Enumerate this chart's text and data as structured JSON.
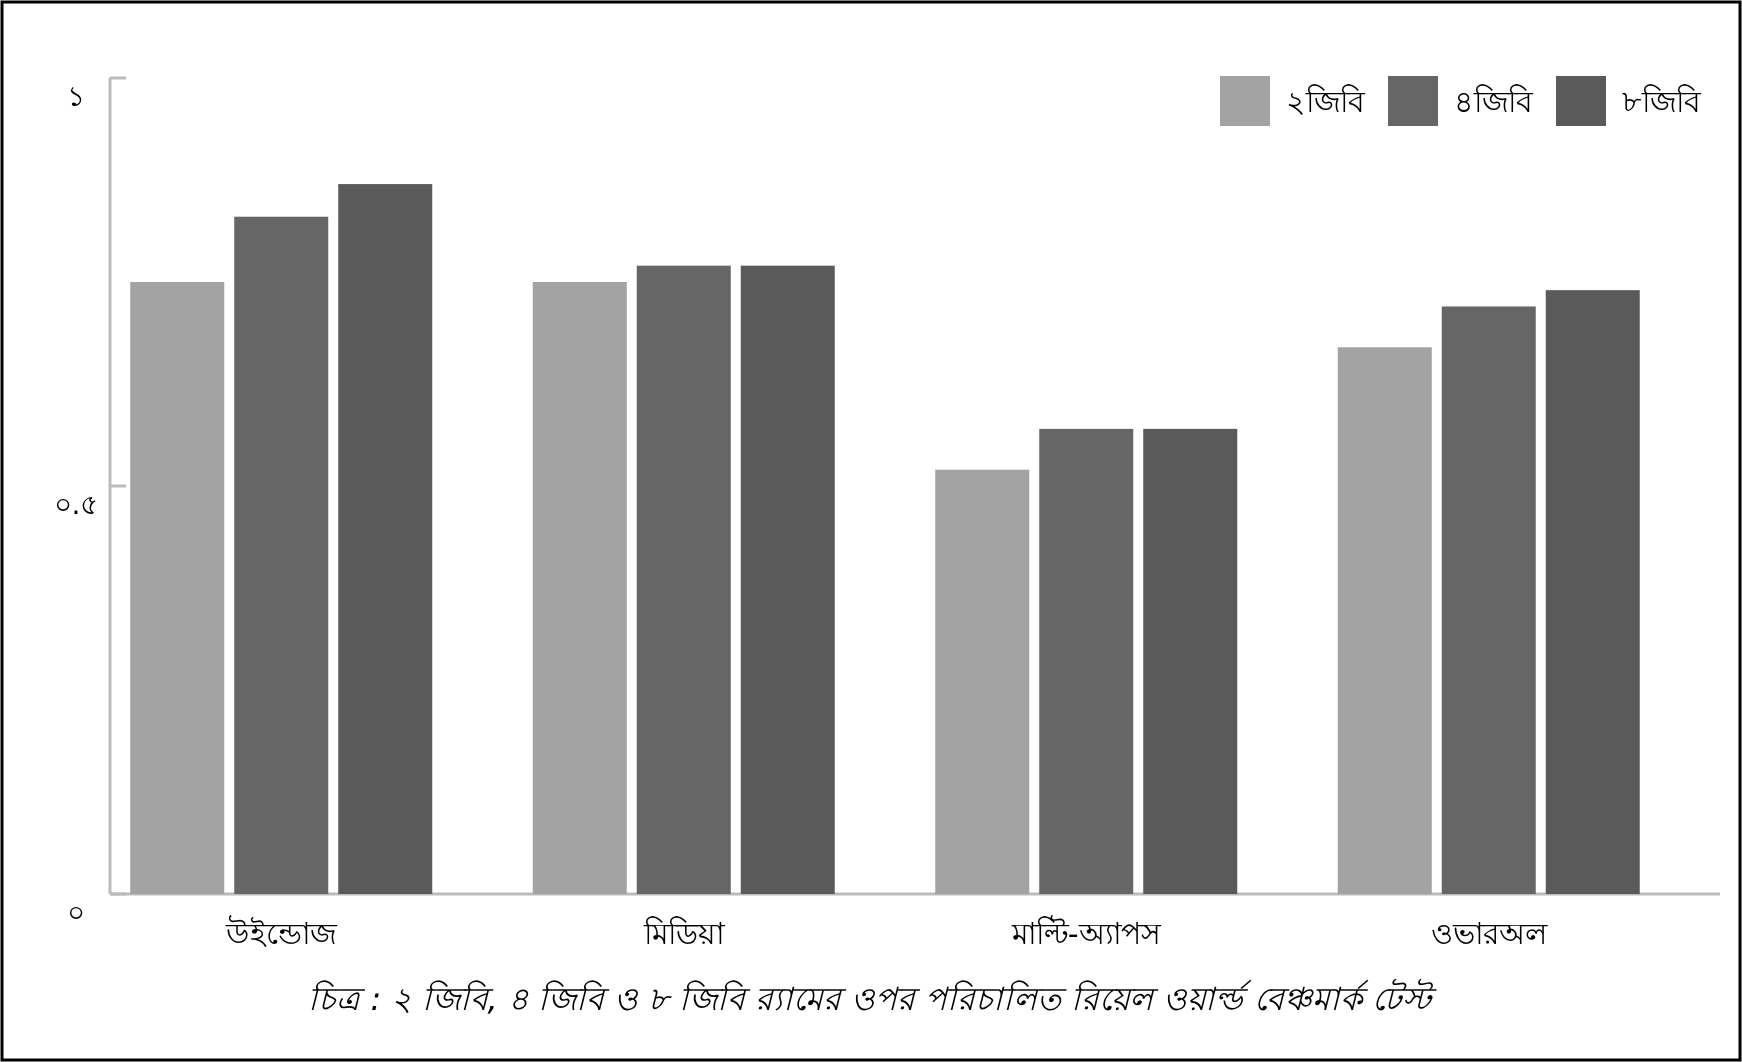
{
  "chart_data": {
    "type": "bar",
    "categories": [
      "উইন্ডোজ",
      "মিডিয়া",
      "মাল্টি-অ্যাপস",
      "ওভারঅল"
    ],
    "series": [
      {
        "name": "২জিবি",
        "color": "#a3a3a3",
        "values": [
          0.75,
          0.75,
          0.52,
          0.67
        ]
      },
      {
        "name": "৪জিবি",
        "color": "#666666",
        "values": [
          0.83,
          0.77,
          0.57,
          0.72
        ]
      },
      {
        "name": "৮জিবি",
        "color": "#5a5a5a",
        "values": [
          0.87,
          0.77,
          0.57,
          0.74
        ]
      }
    ],
    "ylim": [
      0,
      1
    ],
    "yticks": [
      {
        "value": 0,
        "label": "০"
      },
      {
        "value": 0.5,
        "label": "০.৫"
      },
      {
        "value": 1,
        "label": "১"
      }
    ],
    "legend": "top right",
    "grid": false,
    "annotations": [
      "চিত্র : ২ জিবি, ৪ জিবি ও ৮ জিবি র‍্যামের ওপর পরিচালিত রিয়েল ওয়ার্ল্ড বেঞ্চমার্ক টেস্ট"
    ]
  }
}
